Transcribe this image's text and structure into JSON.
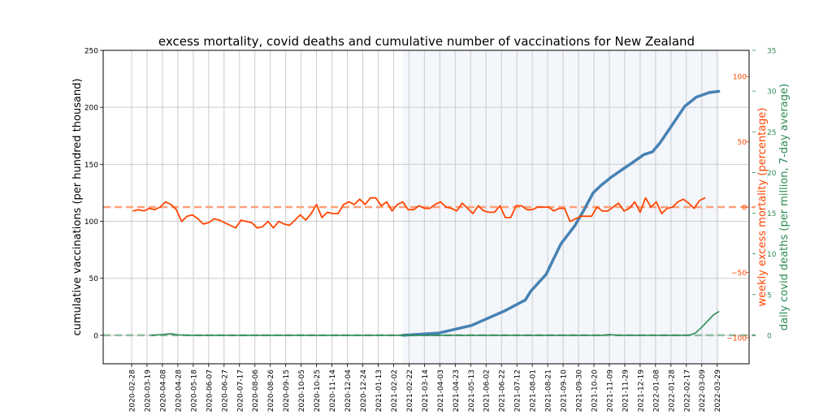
{
  "chart_data": {
    "type": "line",
    "title": "excess mortality, covid deaths and cumulative number of vaccinations for New Zealand",
    "grid": true,
    "shaded_region": [
      "2021-02-14",
      "2022-03-31"
    ],
    "colors": {
      "vaccinations": "#4682b4",
      "excess": "#ff4500",
      "excess_zero": "#ffa07a",
      "deaths": "#2e8b57",
      "shade": "#f3f6fa",
      "grid": "#cccccc"
    },
    "x_ticks": [
      "2020-02-28",
      "2020-03-19",
      "2020-04-08",
      "2020-04-28",
      "2020-05-18",
      "2020-06-07",
      "2020-06-27",
      "2020-07-17",
      "2020-08-06",
      "2020-08-26",
      "2020-09-15",
      "2020-10-05",
      "2020-10-25",
      "2020-11-14",
      "2020-12-04",
      "2020-12-24",
      "2021-01-13",
      "2021-02-02",
      "2021-02-22",
      "2021-03-14",
      "2021-04-03",
      "2021-04-23",
      "2021-05-13",
      "2021-06-02",
      "2021-06-22",
      "2021-07-12",
      "2021-08-01",
      "2021-08-21",
      "2021-09-10",
      "2021-09-30",
      "2021-10-20",
      "2021-11-09",
      "2021-11-29",
      "2021-12-19",
      "2022-01-08",
      "2022-01-28",
      "2022-02-17",
      "2022-03-09",
      "2022-03-29"
    ],
    "axes": {
      "left": {
        "label": "cumulative vaccinations (per hundred thousand)",
        "ylim": [
          -25,
          250
        ],
        "ticks": [
          "0",
          "50",
          "100",
          "150",
          "200",
          "250"
        ]
      },
      "right1": {
        "label": "weekly excess mortality (percentage)",
        "ylim": [
          -120,
          120
        ],
        "ticks": [
          "100",
          "50",
          "0",
          "−50",
          "−100"
        ],
        "tick_values": [
          100,
          50,
          0,
          -50,
          -100
        ]
      },
      "right2": {
        "label": "daily covid deaths (per million, 7-day average)",
        "ylim": [
          -3.5,
          35
        ],
        "ticks": [
          "0",
          "5",
          "10",
          "15",
          "20",
          "25",
          "30",
          "35"
        ]
      }
    },
    "series": [
      {
        "key": "vaccinations",
        "axis": "left",
        "x": [
          "2021-02-14",
          "2021-04-02",
          "2021-05-14",
          "2021-06-25",
          "2021-07-23",
          "2021-07-30",
          "2021-08-19",
          "2021-09-07",
          "2021-09-25",
          "2021-10-08",
          "2021-10-19",
          "2021-10-30",
          "2021-11-12",
          "2021-11-27",
          "2021-12-08",
          "2021-12-24",
          "2022-01-04",
          "2022-01-14",
          "2022-01-29",
          "2022-02-15",
          "2022-03-02",
          "2022-03-19",
          "2022-03-31"
        ],
        "y": [
          0,
          2,
          8.6,
          21,
          31,
          38.6,
          53.5,
          80,
          96,
          111,
          125,
          132,
          139,
          146,
          151,
          158.6,
          161,
          169,
          184,
          201,
          209,
          213,
          214
        ]
      },
      {
        "key": "excess",
        "axis": "right1",
        "x": [
          "2020-03-01",
          "2020-03-08",
          "2020-03-15",
          "2020-03-22",
          "2020-03-29",
          "2020-04-05",
          "2020-04-12",
          "2020-04-19",
          "2020-04-26",
          "2020-05-03",
          "2020-05-10",
          "2020-05-17",
          "2020-05-24",
          "2020-05-31",
          "2020-06-07",
          "2020-06-14",
          "2020-06-21",
          "2020-06-28",
          "2020-07-05",
          "2020-07-12",
          "2020-07-19",
          "2020-07-26",
          "2020-08-02",
          "2020-08-09",
          "2020-08-16",
          "2020-08-23",
          "2020-08-30",
          "2020-09-06",
          "2020-09-13",
          "2020-09-20",
          "2020-09-27",
          "2020-10-04",
          "2020-10-11",
          "2020-10-18",
          "2020-10-25",
          "2020-11-01",
          "2020-11-08",
          "2020-11-15",
          "2020-11-22",
          "2020-11-29",
          "2020-12-06",
          "2020-12-13",
          "2020-12-20",
          "2020-12-27",
          "2021-01-03",
          "2021-01-10",
          "2021-01-17",
          "2021-01-24",
          "2021-01-31",
          "2021-02-07",
          "2021-02-14",
          "2021-02-21",
          "2021-02-28",
          "2021-03-07",
          "2021-03-14",
          "2021-03-21",
          "2021-03-28",
          "2021-04-04",
          "2021-04-11",
          "2021-04-18",
          "2021-04-25",
          "2021-05-02",
          "2021-05-09",
          "2021-05-16",
          "2021-05-23",
          "2021-05-30",
          "2021-06-06",
          "2021-06-13",
          "2021-06-20",
          "2021-06-27",
          "2021-07-04",
          "2021-07-11",
          "2021-07-18",
          "2021-07-25",
          "2021-08-01",
          "2021-08-08",
          "2021-08-15",
          "2021-08-22",
          "2021-08-29",
          "2021-09-05",
          "2021-09-12",
          "2021-09-19",
          "2021-09-26",
          "2021-10-03",
          "2021-10-10",
          "2021-10-17",
          "2021-10-24",
          "2021-10-31",
          "2021-11-07",
          "2021-11-14",
          "2021-11-21",
          "2021-11-28",
          "2021-12-05",
          "2021-12-12",
          "2021-12-19",
          "2021-12-26",
          "2022-01-02",
          "2022-01-09",
          "2022-01-16",
          "2022-01-23",
          "2022-01-30",
          "2022-02-06",
          "2022-02-13",
          "2022-02-20",
          "2022-02-27",
          "2022-03-06",
          "2022-03-13"
        ],
        "y": [
          -3,
          -2,
          -3,
          -1,
          -2,
          0,
          4,
          2,
          -2,
          -11,
          -7,
          -6,
          -9,
          -13,
          -12,
          -9,
          -10,
          -12,
          -14,
          -16,
          -10,
          -11,
          -12,
          -16,
          -15,
          -11,
          -16,
          -11,
          -13,
          -14,
          -10,
          -6,
          -10,
          -5,
          2,
          -8,
          -4,
          -5,
          -5,
          2,
          4,
          2,
          6,
          2,
          7,
          7,
          1,
          4,
          -3,
          2,
          4,
          -2,
          -2,
          1,
          -1,
          -1,
          2,
          4,
          0,
          -1,
          -3,
          3,
          -1,
          -5,
          1,
          -3,
          -4,
          -4,
          1,
          -8,
          -8,
          1,
          1,
          -2,
          -2,
          0,
          0,
          0,
          -3,
          -1,
          -1,
          -11,
          -9,
          -7,
          -7,
          -7,
          0,
          -3,
          -3,
          0,
          3,
          -3,
          -1,
          4,
          -4,
          7,
          0,
          4,
          -5,
          -1,
          0,
          4,
          6,
          3,
          -1,
          5,
          7
        ]
      },
      {
        "key": "deaths",
        "axis": "right2",
        "x": [
          "2020-03-25",
          "2020-04-08",
          "2020-04-19",
          "2020-04-29",
          "2020-05-15",
          "2021-11-01",
          "2021-11-09",
          "2021-11-20",
          "2022-02-21",
          "2022-03-01",
          "2022-03-09",
          "2022-03-17",
          "2022-03-24",
          "2022-03-31"
        ],
        "y": [
          0,
          0.1,
          0.2,
          0.05,
          0,
          0,
          0.1,
          0,
          0,
          0.3,
          1.0,
          1.8,
          2.5,
          2.9
        ]
      }
    ]
  }
}
